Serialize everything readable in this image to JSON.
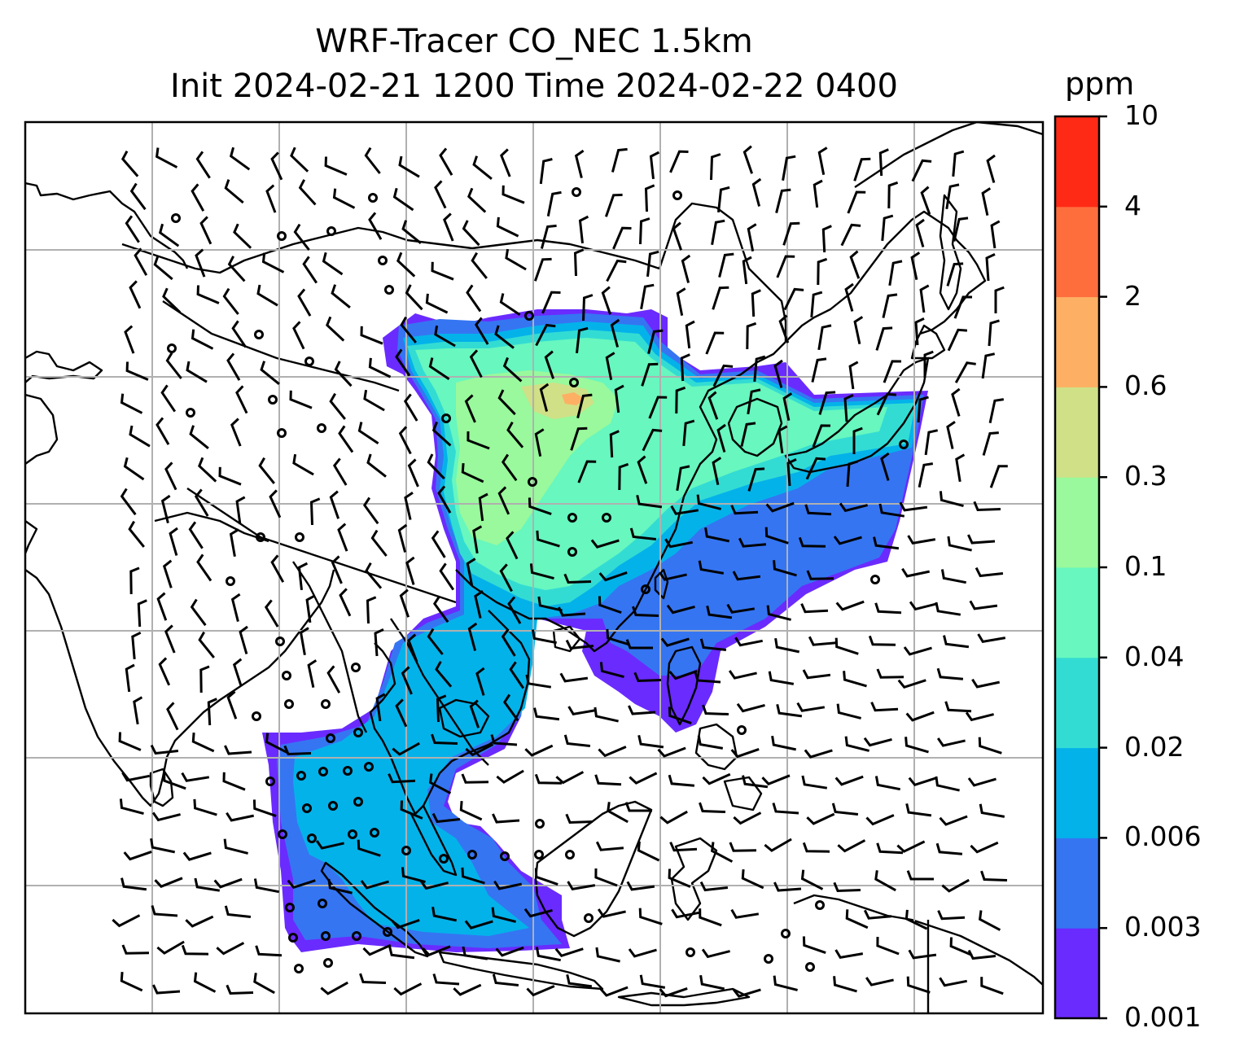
{
  "title": {
    "line1": "WRF-Tracer CO_NEC 1.5km",
    "line2": "Init 2024-02-21 1200 Time 2024-02-22 0400"
  },
  "colorbar": {
    "unit": "ppm",
    "levels": [
      "0.001",
      "0.003",
      "0.006",
      "0.02",
      "0.04",
      "0.1",
      "0.3",
      "0.6",
      "2",
      "4",
      "10"
    ],
    "colors": [
      "#6a2bff",
      "#3575f2",
      "#04b2ea",
      "#33dcd3",
      "#67f7bf",
      "#99f99c",
      "#d0e087",
      "#fdb063",
      "#fe6e3d",
      "#fe2a16"
    ]
  },
  "map": {
    "grid": true,
    "coastline_color": "#000000",
    "grid_color": "#b0b0b0",
    "wind_barbs": true
  }
}
